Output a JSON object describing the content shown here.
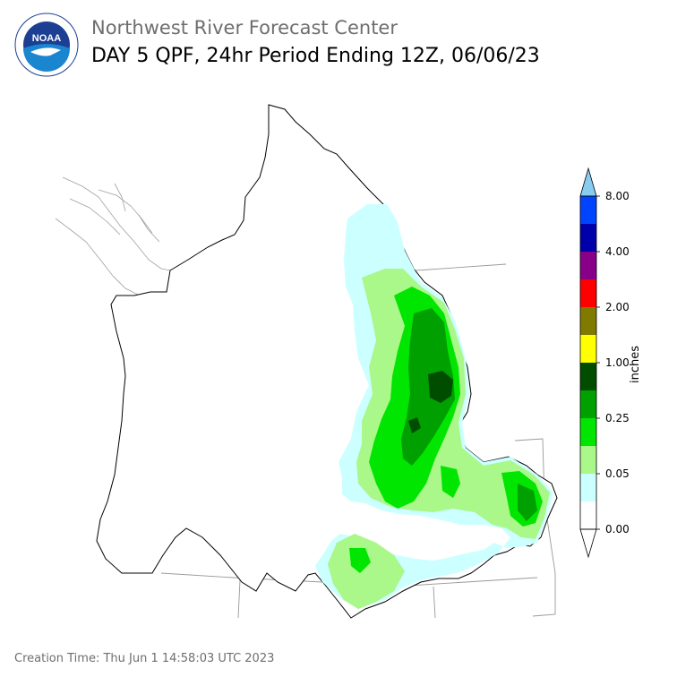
{
  "header": {
    "center_name": "Northwest River Forecast Center",
    "product_title": "DAY 5 QPF, 24hr Period Ending 12Z, 06/06/23"
  },
  "logo": {
    "text": "NOAA",
    "icon": "noaa-logo"
  },
  "legend": {
    "units": "inches",
    "ticks": [
      "8.00",
      "4.00",
      "2.00",
      "1.00",
      "0.25",
      "0.05",
      "0.00"
    ],
    "colors": [
      "#ffffff",
      "#ccffff",
      "#aaf78a",
      "#00e600",
      "#00a000",
      "#004d00",
      "#ffff00",
      "#807a00",
      "#ff0000",
      "#880088",
      "#0000aa",
      "#0044ff",
      "#88ccf0"
    ]
  },
  "precip_colors": {
    "trace": "#ccffff",
    "light": "#aaf78a",
    "moderate": "#00e600",
    "heavy": "#00a000",
    "very_heavy": "#004d00"
  },
  "footer": {
    "creation_time": "Creation Time: Thu Jun 1 14:58:03 UTC 2023"
  }
}
